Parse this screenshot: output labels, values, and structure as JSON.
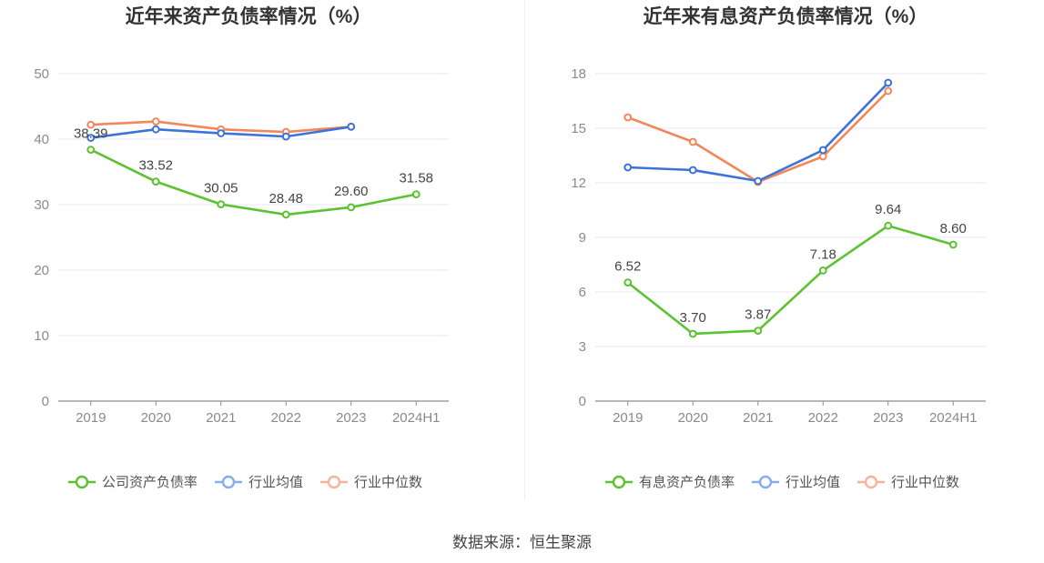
{
  "source": "数据来源：恒生聚源",
  "chart_data": [
    {
      "type": "line",
      "title": "近年来资产负债率情况（%）",
      "categories": [
        "2019",
        "2020",
        "2021",
        "2022",
        "2023",
        "2024H1"
      ],
      "ylim": [
        0,
        50
      ],
      "yticks": [
        0,
        10,
        20,
        30,
        40,
        50
      ],
      "grid": true,
      "legend_position": "bottom",
      "series": [
        {
          "name": "公司资产负债率",
          "color": "#5cc22f",
          "values": [
            38.39,
            33.52,
            30.05,
            28.48,
            29.6,
            31.58
          ],
          "labels": [
            "38.39",
            "33.52",
            "30.05",
            "28.48",
            "29.60",
            "31.58"
          ]
        },
        {
          "name": "行业均值",
          "color": "#3d72d9",
          "values": [
            40.2,
            41.5,
            40.9,
            40.4,
            41.9,
            null
          ]
        },
        {
          "name": "行业中位数",
          "color": "#f2875a",
          "values": [
            42.2,
            42.7,
            41.5,
            41.1,
            41.9,
            null
          ]
        }
      ]
    },
    {
      "type": "line",
      "title": "近年来有息资产负债率情况（%）",
      "categories": [
        "2019",
        "2020",
        "2021",
        "2022",
        "2023",
        "2024H1"
      ],
      "ylim": [
        0,
        18
      ],
      "yticks": [
        0,
        3,
        6,
        9,
        12,
        15,
        18
      ],
      "grid": true,
      "legend_position": "bottom",
      "series": [
        {
          "name": "有息资产负债率",
          "color": "#5cc22f",
          "values": [
            6.52,
            3.7,
            3.87,
            7.18,
            9.64,
            8.6
          ],
          "labels": [
            "6.52",
            "3.70",
            "3.87",
            "7.18",
            "9.64",
            "8.60"
          ]
        },
        {
          "name": "行业均值",
          "color": "#3d72d9",
          "values": [
            12.85,
            12.7,
            12.1,
            13.8,
            17.5,
            null
          ]
        },
        {
          "name": "行业中位数",
          "color": "#f2875a",
          "values": [
            15.6,
            14.25,
            12.05,
            13.45,
            17.05,
            null
          ]
        }
      ]
    }
  ]
}
